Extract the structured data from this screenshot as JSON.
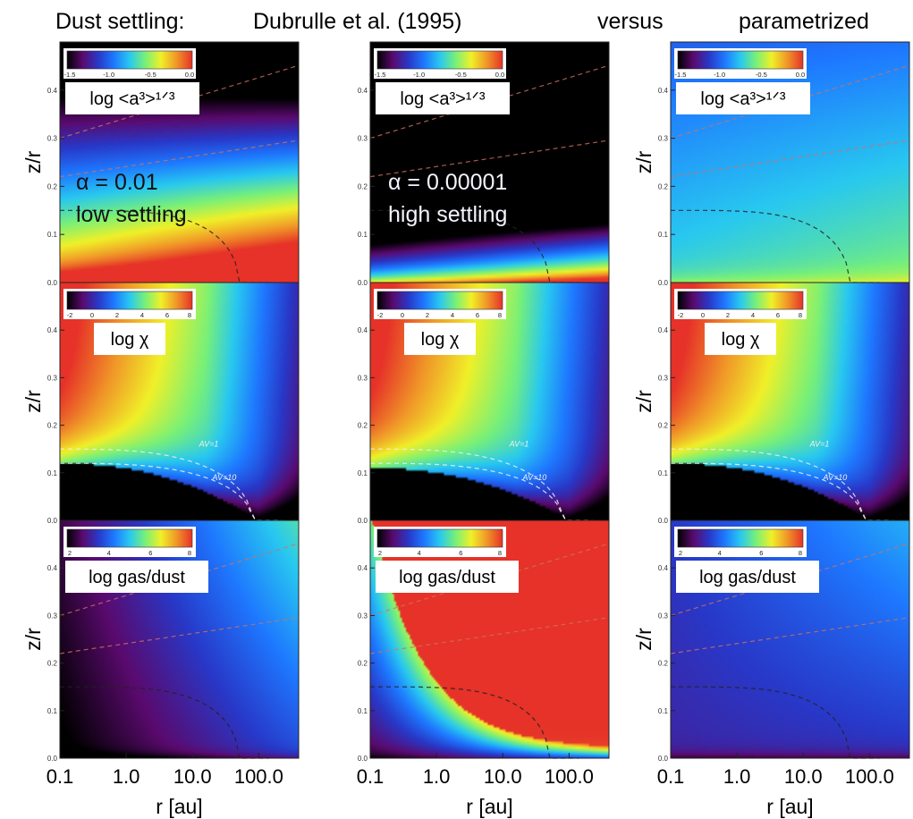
{
  "header": {
    "label": "Dust settling:",
    "title_col1": "Dubrulle et al. (1995)",
    "title_col2": "versus",
    "title_col3": "parametrized"
  },
  "colors": {
    "cmap": [
      "#000000",
      "#5a0a6e",
      "#2838c8",
      "#1e78ff",
      "#28c8f0",
      "#78f078",
      "#f0f028",
      "#f09628",
      "#e63228"
    ],
    "ref_curve_red": "#d07060",
    "ref_curve_black": "#222222",
    "av_contour": "#f0f0f0"
  },
  "chart_data": [
    {
      "type": "heatmap",
      "row": "grain size",
      "column": "Dubrulle et al. (1995), alpha = 0.01",
      "quantity_label": "log <a³>¹ᐟ³",
      "colorbar_ticks": [
        "-1.5",
        "-1.0",
        "-0.5",
        "0.0"
      ],
      "annotation": [
        "α = 0.01",
        "low settling"
      ],
      "xlabel": "",
      "ylabel": "z/r",
      "xscale": "log",
      "xlim": [
        0.1,
        400
      ],
      "ylim": [
        0,
        0.5
      ],
      "yticks": [
        "0.0",
        "0.1",
        "0.2",
        "0.3",
        "0.4"
      ],
      "map": {
        "stops": [
          -1.5,
          -1.0,
          -0.5,
          0.0
        ],
        "z0": -0.15,
        "zslope": 0.3,
        "zr": -3.5,
        "zlx": -0.4,
        "zmid": -2.2,
        "midw": 0.03
      }
    },
    {
      "type": "heatmap",
      "row": "grain size",
      "column": "Dubrulle et al. (1995), alpha = 0.00001",
      "quantity_label": "log <a³>¹ᐟ³",
      "colorbar_ticks": [
        "-1.5",
        "-1.0",
        "-0.5",
        "0.0"
      ],
      "annotation": [
        "α = 0.00001",
        "high settling"
      ],
      "xlabel": "",
      "ylabel": "",
      "xscale": "log",
      "xlim": [
        0.1,
        400
      ],
      "ylim": [
        0,
        0.5
      ],
      "yticks": [
        "0.0",
        "0.1",
        "0.2",
        "0.3",
        "0.4"
      ],
      "map": {
        "stops": [
          -1.5,
          -1.0,
          -0.5,
          0.0
        ],
        "z0": -0.9,
        "zslope": 0.35,
        "zr": -8.0,
        "zlx": -0.6,
        "zmid": -3.0,
        "midw": 0.025
      }
    },
    {
      "type": "heatmap",
      "row": "grain size",
      "column": "parametrized",
      "quantity_label": "log <a³>¹ᐟ³",
      "colorbar_ticks": [
        "-1.5",
        "-1.0",
        "-0.5",
        "0.0"
      ],
      "xlabel": "",
      "ylabel": "z/r",
      "xscale": "log",
      "xlim": [
        0.1,
        400
      ],
      "ylim": [
        0,
        0.5
      ],
      "yticks": [
        "0.0",
        "0.1",
        "0.2",
        "0.3",
        "0.4"
      ],
      "map": {
        "stops": [
          -1.5,
          -1.0,
          -0.5,
          0.0
        ],
        "z0": -0.7,
        "zslope": 0.08,
        "zr": -0.6,
        "zlx": -0.05,
        "zmid": -1.8,
        "midw": 0.02
      }
    },
    {
      "type": "heatmap",
      "row": "UV field",
      "column": "Dubrulle et al. (1995), alpha = 0.01",
      "quantity_label": "log χ",
      "colorbar_ticks": [
        "-2",
        "0",
        "2",
        "4",
        "6",
        "8"
      ],
      "contour_labels": [
        "AV=1",
        "AV=10"
      ],
      "xlabel": "",
      "ylabel": "z/r",
      "xscale": "log",
      "xlim": [
        0.1,
        400
      ],
      "ylim": [
        0,
        0.5
      ],
      "yticks": [
        "0.0",
        "0.1",
        "0.2",
        "0.3",
        "0.4"
      ],
      "map": {
        "stops": [
          -2,
          0,
          2,
          4,
          6,
          8
        ],
        "shield": 0.12
      }
    },
    {
      "type": "heatmap",
      "row": "UV field",
      "column": "Dubrulle et al. (1995), alpha = 0.00001",
      "quantity_label": "log χ",
      "colorbar_ticks": [
        "-2",
        "0",
        "2",
        "4",
        "6",
        "8"
      ],
      "contour_labels": [
        "AV=1",
        "AV=10"
      ],
      "xlabel": "",
      "ylabel": "",
      "xscale": "log",
      "xlim": [
        0.1,
        400
      ],
      "ylim": [
        0,
        0.5
      ],
      "yticks": [
        "0.0",
        "0.1",
        "0.2",
        "0.3",
        "0.4"
      ],
      "map": {
        "stops": [
          -2,
          0,
          2,
          4,
          6,
          8
        ],
        "shield": 0.11
      }
    },
    {
      "type": "heatmap",
      "row": "UV field",
      "column": "parametrized",
      "quantity_label": "log χ",
      "colorbar_ticks": [
        "-2",
        "0",
        "2",
        "4",
        "6",
        "8"
      ],
      "contour_labels": [
        "AV=1",
        "AV=10"
      ],
      "xlabel": "",
      "ylabel": "z/r",
      "xscale": "log",
      "xlim": [
        0.1,
        400
      ],
      "ylim": [
        0,
        0.5
      ],
      "yticks": [
        "0.0",
        "0.1",
        "0.2",
        "0.3",
        "0.4"
      ],
      "map": {
        "stops": [
          -2,
          0,
          2,
          4,
          6,
          8
        ],
        "shield": 0.12
      }
    },
    {
      "type": "heatmap",
      "row": "gas-to-dust ratio",
      "column": "Dubrulle et al. (1995), alpha = 0.01",
      "quantity_label": "log gas/dust",
      "colorbar_ticks": [
        "2",
        "4",
        "6",
        "8"
      ],
      "xlabel": "r [au]",
      "ylabel": "z/r",
      "xscale": "log",
      "xlim": [
        0.1,
        400
      ],
      "ylim": [
        0,
        0.5
      ],
      "xticks": [
        "0.1",
        "1.0",
        "10.0",
        "100.0"
      ],
      "yticks": [
        "0.0",
        "0.1",
        "0.2",
        "0.3",
        "0.4"
      ],
      "map": {
        "stops": [
          2,
          4,
          6,
          8
        ],
        "g0": 1.9,
        "gz": 1.2,
        "glx": 1.0,
        "gr": 0.0,
        "gmid": 0.8,
        "midw": 0.01
      }
    },
    {
      "type": "heatmap",
      "row": "gas-to-dust ratio",
      "column": "Dubrulle et al. (1995), alpha = 0.00001",
      "quantity_label": "log gas/dust",
      "colorbar_ticks": [
        "2",
        "4",
        "6",
        "8"
      ],
      "xlabel": "r [au]",
      "ylabel": "",
      "xscale": "log",
      "xlim": [
        0.1,
        400
      ],
      "ylim": [
        0,
        0.5
      ],
      "xticks": [
        "0.1",
        "1.0",
        "10.0",
        "100.0"
      ],
      "yticks": [
        "0.0",
        "0.1",
        "0.2",
        "0.3",
        "0.4"
      ],
      "map": {
        "stops": [
          2,
          4,
          6,
          8
        ],
        "g0": 1.8,
        "gz": 10.0,
        "glx": 0.9,
        "gr": 12.0,
        "gmid": 0.6,
        "midw": 0.015,
        "front": true
      }
    },
    {
      "type": "heatmap",
      "row": "gas-to-dust ratio",
      "column": "parametrized",
      "quantity_label": "log gas/dust",
      "colorbar_ticks": [
        "2",
        "4",
        "6",
        "8"
      ],
      "xlabel": "r [au]",
      "ylabel": "z/r",
      "xscale": "log",
      "xlim": [
        0.1,
        400
      ],
      "ylim": [
        0,
        0.5
      ],
      "xticks": [
        "0.1",
        "1.0",
        "10.0",
        "100.0"
      ],
      "yticks": [
        "0.0",
        "0.1",
        "0.2",
        "0.3",
        "0.4"
      ],
      "map": {
        "stops": [
          2,
          4,
          6,
          8
        ],
        "g0": 3.2,
        "gz": 0.6,
        "glx": 0.1,
        "gr": 0.0,
        "gmid": 0.9,
        "midw": 0.012
      }
    }
  ]
}
